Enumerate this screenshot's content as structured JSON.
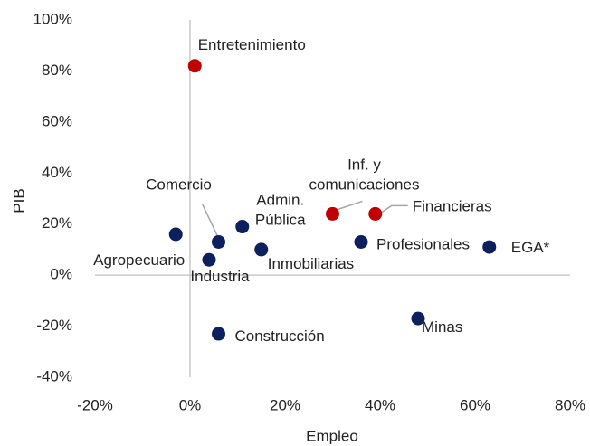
{
  "chart_data": {
    "type": "scatter",
    "x_label": "Empleo",
    "y_label": "PIB",
    "xlim": [
      -20,
      80
    ],
    "ylim": [
      -40,
      100
    ],
    "xticks": [
      {
        "value": -20,
        "label": "-20%"
      },
      {
        "value": 0,
        "label": "0%"
      },
      {
        "value": 20,
        "label": "20%"
      },
      {
        "value": 40,
        "label": "40%"
      },
      {
        "value": 60,
        "label": "60%"
      },
      {
        "value": 80,
        "label": "80%"
      }
    ],
    "yticks": [
      {
        "value": -40,
        "label": "-40%"
      },
      {
        "value": -20,
        "label": "-20%"
      },
      {
        "value": 0,
        "label": "0%"
      },
      {
        "value": 20,
        "label": "20%"
      },
      {
        "value": 40,
        "label": "40%"
      },
      {
        "value": 60,
        "label": "60%"
      },
      {
        "value": 80,
        "label": "80%"
      },
      {
        "value": 100,
        "label": "100%"
      }
    ],
    "series": [
      {
        "color": "#c00000",
        "x": [
          1,
          30,
          39
        ],
        "values": [
          82,
          24,
          24
        ],
        "labels": [
          [
            "Entretenimiento"
          ],
          [
            "Inf. y",
            "comunicaciones"
          ],
          [
            "Financieras"
          ]
        ]
      },
      {
        "color": "#0d1f5c",
        "x": [
          6,
          11,
          -3,
          4,
          15,
          36,
          63,
          6,
          48
        ],
        "values": [
          13,
          19,
          16,
          6,
          10,
          13,
          11,
          -23,
          -17
        ],
        "labels": [
          [
            "Comercio"
          ],
          [
            "Admin.",
            "Pública"
          ],
          [
            "Agropecuario"
          ],
          [
            "Industria"
          ],
          [
            "Inmobiliarias"
          ],
          [
            "Profesionales"
          ],
          [
            "EGA*"
          ],
          [
            "Construcción"
          ],
          [
            "Minas"
          ]
        ]
      }
    ]
  }
}
